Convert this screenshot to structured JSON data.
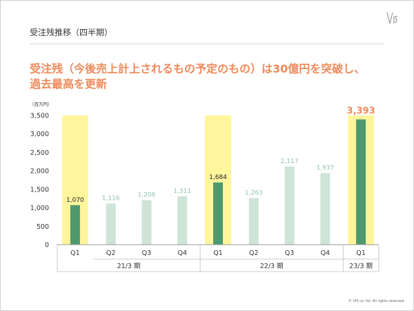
{
  "header": {
    "title": "受注残推移（四半期）"
  },
  "headline": {
    "line1": "受注残（今後売上計上されるもの予定のもの）は30億円を突破し、",
    "line2": "過去最高を更新"
  },
  "footer": {
    "copyright": "© VIS co. ltd. All rights reserved."
  },
  "colors": {
    "highlight": "#fff59d",
    "bar_dark": "#4e9a6e",
    "bar_light": "#cde4d7",
    "label_light": "#8fc2a8",
    "accent": "#ef8a5b"
  },
  "chart_data": {
    "type": "bar",
    "unit": "（百万円）",
    "ylim": [
      0,
      3500
    ],
    "yticks": [
      "0",
      "500",
      "1,000",
      "1,500",
      "2,000",
      "2,500",
      "3,000",
      "3,500"
    ],
    "categories": [
      "Q1",
      "Q2",
      "Q3",
      "Q4",
      "Q1",
      "Q2",
      "Q3",
      "Q4",
      "Q1"
    ],
    "values": [
      1070,
      1116,
      1206,
      1311,
      1684,
      1263,
      2117,
      1937,
      3393
    ],
    "value_labels": [
      "1,070",
      "1,116",
      "1,206",
      "1,311",
      "1,684",
      "1,263",
      "2,117",
      "1,937",
      "3,393"
    ],
    "highlighted_index": [
      0,
      4,
      8
    ],
    "groups": [
      {
        "label": "21/3 期",
        "start": 0,
        "end": 3
      },
      {
        "label": "22/3 期",
        "start": 4,
        "end": 7
      },
      {
        "label": "23/3 期",
        "start": 8,
        "end": 8
      }
    ]
  }
}
